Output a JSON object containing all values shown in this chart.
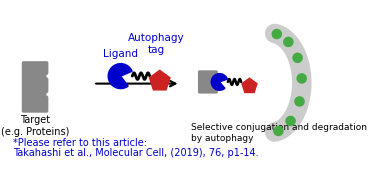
{
  "bg_color": "#ffffff",
  "gray_color": "#888888",
  "blue_color": "#0000cc",
  "red_color": "#cc2222",
  "green_color": "#44aa44",
  "arc_color": "#cccccc",
  "text_color_black": "#000000",
  "text_color_blue": "#0000cc",
  "label_target": "Target\n(e.g. Proteins)",
  "label_ligand": "Ligand",
  "label_autophagy": "Autophagy\ntag",
  "label_selective": "Selective conjugation and degradation\nby autophagy",
  "label_ref1": "*Please refer to this article:",
  "label_ref2": "Takahashi et al., Molecular Cell, (2019), 76, p1-14.",
  "figsize": [
    3.76,
    1.83
  ],
  "dpi": 100
}
